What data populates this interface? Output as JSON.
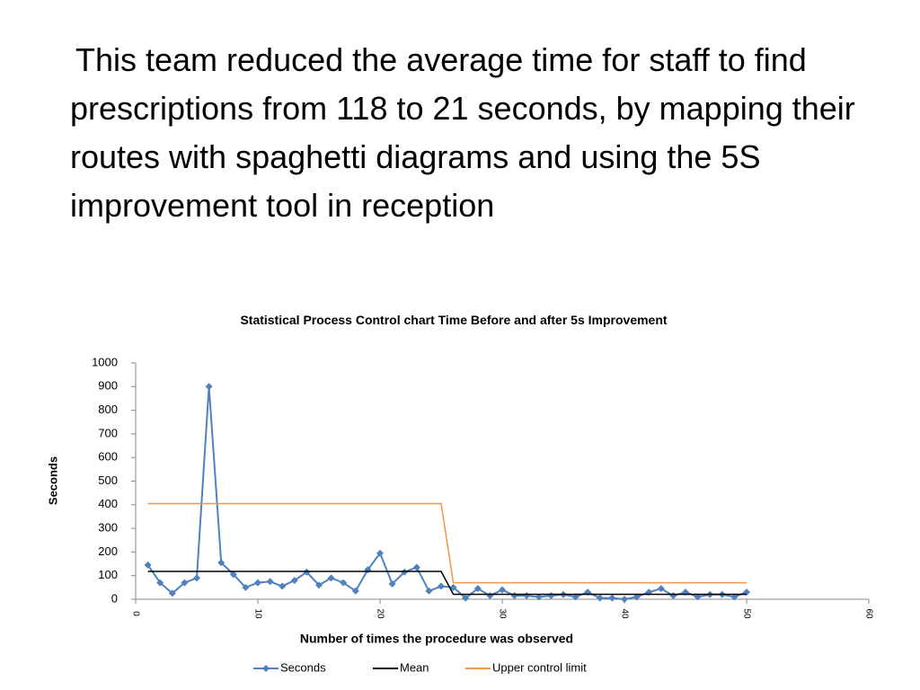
{
  "text": "This team reduced the average time for staff to find prescriptions from 118 to 21 seconds, by mapping their routes with spaghetti diagrams and using the 5S improvement tool in reception",
  "chart_data": {
    "type": "line",
    "title": "Statistical Process Control chart  Time Before and after 5s Improvement",
    "x_label": "Number of times the procedure was observed",
    "y_label": "Seconds",
    "x": [
      1,
      2,
      3,
      4,
      5,
      6,
      7,
      8,
      9,
      10,
      11,
      12,
      13,
      14,
      15,
      16,
      17,
      18,
      19,
      20,
      21,
      22,
      23,
      24,
      25,
      26,
      27,
      28,
      29,
      30,
      31,
      32,
      33,
      34,
      35,
      36,
      37,
      38,
      39,
      40,
      41,
      42,
      43,
      44,
      45,
      46,
      47,
      48,
      49,
      50
    ],
    "series": [
      {
        "name": "Seconds",
        "color": "#4f81bd",
        "marker": true,
        "values": [
          145,
          70,
          25,
          70,
          90,
          900,
          155,
          105,
          50,
          70,
          75,
          55,
          80,
          115,
          60,
          90,
          70,
          35,
          125,
          195,
          65,
          115,
          135,
          35,
          55,
          50,
          5,
          45,
          15,
          40,
          15,
          15,
          10,
          15,
          20,
          10,
          30,
          5,
          5,
          0,
          10,
          30,
          45,
          15,
          30,
          10,
          20,
          20,
          10,
          30
        ]
      },
      {
        "name": "Mean",
        "color": "#000000",
        "marker": false,
        "values": [
          118,
          118,
          118,
          118,
          118,
          118,
          118,
          118,
          118,
          118,
          118,
          118,
          118,
          118,
          118,
          118,
          118,
          118,
          118,
          118,
          118,
          118,
          118,
          118,
          118,
          21,
          21,
          21,
          21,
          21,
          21,
          21,
          21,
          21,
          21,
          21,
          21,
          21,
          21,
          21,
          21,
          21,
          21,
          21,
          21,
          21,
          21,
          21,
          21,
          21
        ]
      },
      {
        "name": "Upper control limit",
        "color": "#f79646",
        "marker": false,
        "values": [
          405,
          405,
          405,
          405,
          405,
          405,
          405,
          405,
          405,
          405,
          405,
          405,
          405,
          405,
          405,
          405,
          405,
          405,
          405,
          405,
          405,
          405,
          405,
          405,
          405,
          70,
          70,
          70,
          70,
          70,
          70,
          70,
          70,
          70,
          70,
          70,
          70,
          70,
          70,
          70,
          70,
          70,
          70,
          70,
          70,
          70,
          70,
          70,
          70,
          70
        ]
      }
    ],
    "xlim": [
      0,
      60
    ],
    "xticks": [
      0,
      10,
      20,
      30,
      40,
      50,
      60
    ],
    "ylim": [
      0,
      1000
    ],
    "yticks": [
      0,
      100,
      200,
      300,
      400,
      500,
      600,
      700,
      800,
      900,
      1000
    ],
    "legend": "bottom"
  }
}
